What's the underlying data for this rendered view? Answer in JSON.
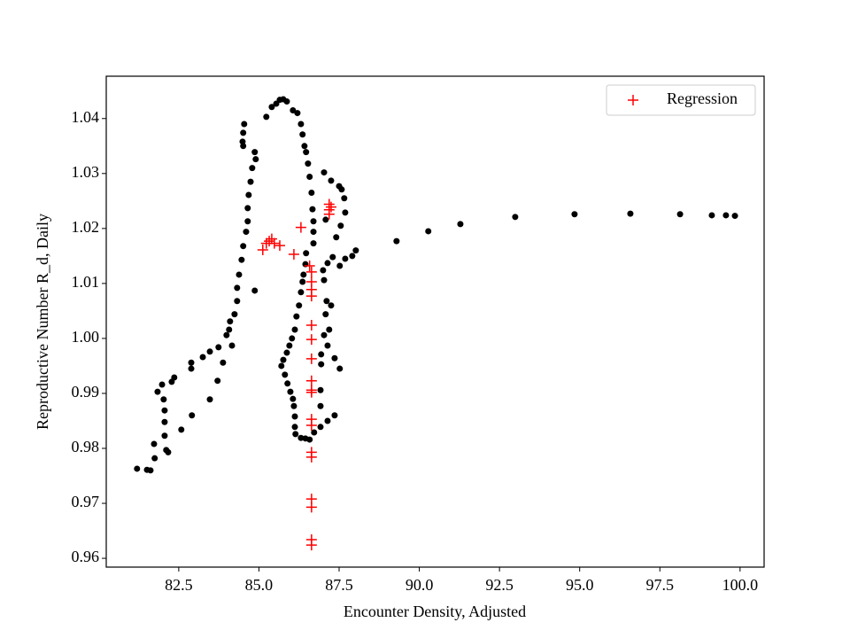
{
  "chart_data": {
    "type": "scatter",
    "xlabel": "Encounter Density, Adjusted",
    "ylabel": "Reproductive Number R_d, Daily",
    "xlim": [
      80.24,
      100.75
    ],
    "ylim": [
      0.9584,
      1.0477
    ],
    "xticks": [
      82.5,
      {
        "value": 85,
        "label": "85.0"
      },
      87.5,
      {
        "value": 90,
        "label": "90.0"
      },
      92.5,
      {
        "value": 95,
        "label": "95.0"
      },
      97.5,
      {
        "value": 100,
        "label": "100.0"
      }
    ],
    "yticks": [
      0.96,
      0.97,
      0.98,
      0.99,
      {
        "value": 1,
        "label": "1.00"
      },
      1.01,
      1.02,
      1.03,
      1.04
    ],
    "legend": "upper right",
    "series": [
      {
        "color": "#000000",
        "marker": "o",
        "x": [
          81.2,
          81.51,
          81.62,
          81.73,
          81.75,
          81.84,
          81.98,
          82.03,
          82.06,
          82.06,
          82.06,
          82.11,
          82.17,
          82.28,
          82.36,
          82.58,
          82.89,
          82.89,
          82.91,
          83.25,
          83.47,
          83.47,
          83.71,
          83.74,
          83.88,
          83.99,
          84.07,
          84.1,
          84.16,
          84.24,
          84.32,
          84.32,
          84.38,
          84.46,
          84.51,
          84.6,
          84.65,
          84.65,
          84.68,
          84.74,
          84.79,
          84.87,
          84.87,
          84.9,
          84.49,
          84.51,
          84.54,
          84.51,
          85.23,
          85.4,
          85.54,
          85.65,
          85.76,
          85.87,
          86.06,
          86.2,
          86.31,
          86.36,
          86.42,
          86.47,
          86.53,
          86.58,
          86.64,
          86.67,
          86.7,
          86.7,
          86.7,
          86.47,
          86.45,
          86.39,
          86.36,
          86.31,
          86.25,
          86.17,
          86.12,
          86.03,
          85.95,
          85.87,
          85.76,
          85.7,
          85.81,
          85.89,
          85.98,
          86.06,
          86.09,
          86.12,
          86.12,
          86.14,
          86.31,
          86.45,
          86.58,
          86.72,
          86.92,
          87.14,
          87.36,
          86.92,
          86.92,
          86.94,
          86.94,
          87.03,
          87.08,
          87.11,
          87.03,
          87.0,
          87.14,
          87.3,
          87.52,
          87.69,
          87.91,
          88.02,
          87.25,
          87.19,
          87.14,
          87.36,
          87.52,
          87.03,
          87.25,
          87.5,
          87.58,
          87.66,
          87.69,
          87.55,
          87.41,
          87.08,
          89.29,
          90.28,
          91.28,
          92.99,
          94.84,
          96.58,
          98.13,
          99.12,
          99.56,
          99.84
        ],
        "values": [
          0.9763,
          0.9761,
          0.976,
          0.9808,
          0.9782,
          0.9903,
          0.9916,
          0.9889,
          0.9869,
          0.9848,
          0.9823,
          0.9797,
          0.9793,
          0.9921,
          0.9929,
          0.9834,
          0.9945,
          0.9956,
          0.986,
          0.9966,
          0.9976,
          0.9889,
          0.9923,
          0.9984,
          0.9956,
          1.0006,
          1.0016,
          1.0031,
          0.9987,
          1.0044,
          1.0068,
          1.0092,
          1.0116,
          1.0143,
          1.0168,
          1.0194,
          1.0213,
          1.0237,
          1.0261,
          1.0285,
          1.031,
          1.0339,
          1.0087,
          1.0326,
          1.0358,
          1.0374,
          1.039,
          1.035,
          1.0403,
          1.0421,
          1.0427,
          1.0434,
          1.0435,
          1.0431,
          1.0415,
          1.041,
          1.039,
          1.0371,
          1.035,
          1.0339,
          1.0318,
          1.0294,
          1.0265,
          1.0235,
          1.0213,
          1.0194,
          1.0173,
          1.0155,
          1.0135,
          1.0116,
          1.0103,
          1.0084,
          1.006,
          1.004,
          1.0016,
          1.0,
          0.9987,
          0.9974,
          0.9961,
          0.995,
          0.9934,
          0.9918,
          0.9903,
          0.989,
          0.9877,
          0.9858,
          0.9839,
          0.9826,
          0.9819,
          0.9818,
          0.9816,
          0.9829,
          0.9839,
          0.985,
          0.986,
          0.9877,
          0.9906,
          0.9953,
          0.9971,
          1.0006,
          1.0044,
          1.0068,
          1.0106,
          1.0124,
          1.0137,
          1.0148,
          1.0132,
          1.0145,
          1.015,
          1.016,
          1.006,
          1.0016,
          0.9987,
          0.9964,
          0.9945,
          1.0302,
          1.0287,
          1.0277,
          1.0271,
          1.0255,
          1.0229,
          1.0205,
          1.0184,
          1.0216,
          1.0177,
          1.0195,
          1.0208,
          1.0221,
          1.0226,
          1.0227,
          1.0226,
          1.0224,
          1.0224,
          1.0223
        ]
      },
      {
        "name": "Regression",
        "color": "#ff0000",
        "marker": "+",
        "x": [
          85.12,
          85.23,
          85.32,
          85.4,
          85.48,
          85.65,
          86.09,
          86.31,
          86.58,
          86.64,
          86.64,
          86.64,
          86.64,
          86.64,
          86.64,
          86.64,
          86.64,
          86.64,
          86.64,
          86.64,
          86.64,
          86.64,
          86.64,
          86.64,
          86.64,
          86.64,
          86.64,
          87.19,
          87.19,
          87.19,
          87.25
        ],
        "values": [
          1.0161,
          1.0173,
          1.0177,
          1.0181,
          1.0173,
          1.0169,
          1.0153,
          1.0202,
          1.0132,
          1.0121,
          1.0103,
          1.0089,
          1.0077,
          1.0024,
          0.9998,
          0.9963,
          0.9923,
          0.9906,
          0.9902,
          0.9853,
          0.9842,
          0.9793,
          0.9784,
          0.9708,
          0.9693,
          0.9634,
          0.9624,
          1.0244,
          1.0234,
          1.0226,
          1.0239
        ]
      }
    ]
  }
}
